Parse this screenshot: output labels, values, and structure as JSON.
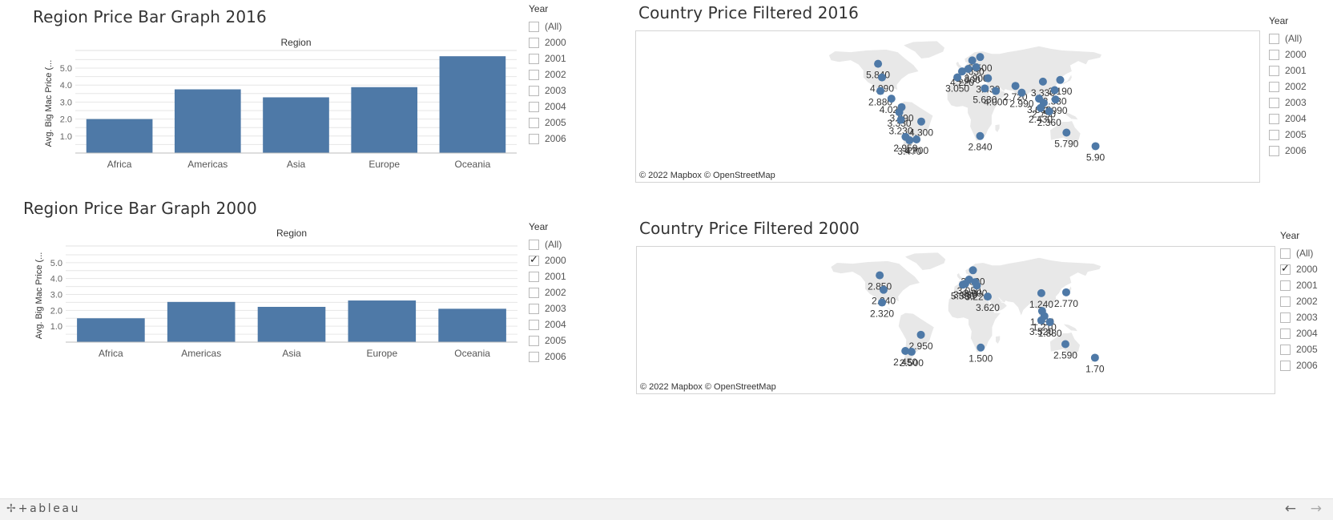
{
  "charts": {
    "bar2016": {
      "title": "Region Price Bar Graph 2016",
      "header": "Region",
      "ylabel": "Avg. Big Mac Price (...",
      "legend_title": "Year",
      "legend_items": [
        "(All)",
        "2000",
        "2001",
        "2002",
        "2003",
        "2004",
        "2005",
        "2006"
      ],
      "legend_checked": []
    },
    "bar2000": {
      "title": "Region Price Bar Graph 2000",
      "header": "Region",
      "ylabel": "Avg. Big Mac Price (...",
      "legend_title": "Year",
      "legend_items": [
        "(All)",
        "2000",
        "2001",
        "2002",
        "2003",
        "2004",
        "2005",
        "2006"
      ],
      "legend_checked": [
        "2000"
      ]
    },
    "map2016": {
      "title": "Country Price Filtered 2016",
      "attribution": "© 2022 Mapbox  © OpenStreetMap",
      "legend_title": "Year",
      "legend_items": [
        "(All)",
        "2000",
        "2001",
        "2002",
        "2003",
        "2004",
        "2005",
        "2006"
      ],
      "legend_checked": []
    },
    "map2000": {
      "title": "Country Price Filtered 2000",
      "attribution": "© 2022 Mapbox  © OpenStreetMap",
      "legend_title": "Year",
      "legend_items": [
        "(All)",
        "2000",
        "2001",
        "2002",
        "2003",
        "2004",
        "2005",
        "2006"
      ],
      "legend_checked": [
        "2000"
      ]
    }
  },
  "footer": {
    "brand": "+ableau",
    "logo_icon": "tableau-logo-icon",
    "back_icon": "arrow-left-icon",
    "forward_icon": "arrow-right-icon"
  },
  "colors": {
    "bar": "#4e79a7",
    "mark": "#4e79a7",
    "land": "#e8e8e8",
    "grid": "#e6e6e6"
  },
  "chart_data": [
    {
      "type": "bar",
      "title": "Region Price Bar Graph 2016",
      "xlabel": "Region",
      "ylabel": "Avg. Big Mac Price (...",
      "categories": [
        "Africa",
        "Americas",
        "Asia",
        "Europe",
        "Oceania"
      ],
      "values": [
        2.0,
        3.75,
        3.28,
        3.88,
        5.7
      ],
      "yticks": [
        1.0,
        2.0,
        3.0,
        4.0,
        5.0
      ],
      "ylim": [
        0,
        5.85
      ],
      "grid": true
    },
    {
      "type": "bar",
      "title": "Region Price Bar Graph 2000",
      "xlabel": "Region",
      "ylabel": "Avg. Big Mac Price (...",
      "categories": [
        "Africa",
        "Americas",
        "Asia",
        "Europe",
        "Oceania"
      ],
      "values": [
        1.5,
        2.53,
        2.22,
        2.62,
        2.1
      ],
      "yticks": [
        1.0,
        2.0,
        3.0,
        4.0,
        5.0
      ],
      "ylim": [
        0,
        5.85
      ],
      "grid": true
    },
    {
      "type": "scatter",
      "title": "Country Price Filtered 2016",
      "points": [
        {
          "lon": -105,
          "lat": 56,
          "label": "5.840"
        },
        {
          "lon": -100,
          "lat": 40,
          "label": "4.990"
        },
        {
          "lon": -102,
          "lat": 24,
          "label": "2.880"
        },
        {
          "lon": -88,
          "lat": 15,
          "label": "4.020"
        },
        {
          "lon": -75,
          "lat": 5,
          "label": "3.890"
        },
        {
          "lon": -78,
          "lat": -1,
          "label": "3.330"
        },
        {
          "lon": -76,
          "lat": -10,
          "label": "3.230"
        },
        {
          "lon": -70,
          "lat": -30,
          "label": "2.950"
        },
        {
          "lon": -65,
          "lat": -34,
          "label": "3.470"
        },
        {
          "lon": -56,
          "lat": -33,
          "label": "4.700"
        },
        {
          "lon": -50,
          "lat": -12,
          "label": "4.300"
        },
        {
          "lon": -4,
          "lat": 40,
          "label": "3.050"
        },
        {
          "lon": 10,
          "lat": 50,
          "label": "4.000"
        },
        {
          "lon": 2,
          "lat": 47,
          "label": "4.220"
        },
        {
          "lon": 15,
          "lat": 60,
          "label": "5.630"
        },
        {
          "lon": 25,
          "lat": 64,
          "label": "5.500"
        },
        {
          "lon": 20,
          "lat": 52,
          "label": "3.900"
        },
        {
          "lon": 35,
          "lat": 39,
          "label": "3.430"
        },
        {
          "lon": 31,
          "lat": 27,
          "label": "5.630"
        },
        {
          "lon": 45,
          "lat": 24,
          "label": "4.000"
        },
        {
          "lon": 25,
          "lat": -29,
          "label": "2.840"
        },
        {
          "lon": 78,
          "lat": 22,
          "label": "2.990"
        },
        {
          "lon": 70,
          "lat": 30,
          "label": "2.720"
        },
        {
          "lon": 105,
          "lat": 35,
          "label": "3.330"
        },
        {
          "lon": 127,
          "lat": 37,
          "label": "3.190"
        },
        {
          "lon": 100,
          "lat": 15,
          "label": "3.630"
        },
        {
          "lon": 102,
          "lat": 4,
          "label": "2.430"
        },
        {
          "lon": 106,
          "lat": 10,
          "label": "2.790"
        },
        {
          "lon": 121,
          "lat": 14,
          "label": "2.990"
        },
        {
          "lon": 113,
          "lat": 0,
          "label": "2.360"
        },
        {
          "lon": 120,
          "lat": 25,
          "label": "2.330"
        },
        {
          "lon": 135,
          "lat": -25,
          "label": "5.790"
        },
        {
          "lon": 172,
          "lat": -41,
          "label": "5.90"
        }
      ]
    },
    {
      "type": "scatter",
      "title": "Country Price Filtered 2000",
      "points": [
        {
          "lon": -105,
          "lat": 56,
          "label": "2.850"
        },
        {
          "lon": -100,
          "lat": 39,
          "label": "2.240"
        },
        {
          "lon": -102,
          "lat": 24,
          "label": "2.320"
        },
        {
          "lon": -72,
          "lat": -33,
          "label": "2.450"
        },
        {
          "lon": -64,
          "lat": -34,
          "label": "2.500"
        },
        {
          "lon": -52,
          "lat": -14,
          "label": "2.950"
        },
        {
          "lon": 15,
          "lat": 62,
          "label": "3.000"
        },
        {
          "lon": 10,
          "lat": 51,
          "label": "3.050"
        },
        {
          "lon": 18,
          "lat": 48,
          "label": "3.000"
        },
        {
          "lon": 5,
          "lat": 46,
          "label": "3.830"
        },
        {
          "lon": 20,
          "lat": 44,
          "label": "3.220"
        },
        {
          "lon": 2,
          "lat": 45,
          "label": "5.530"
        },
        {
          "lon": 34,
          "lat": 31,
          "label": "3.620"
        },
        {
          "lon": 25,
          "lat": -29,
          "label": "1.500"
        },
        {
          "lon": 103,
          "lat": 35,
          "label": "1.240"
        },
        {
          "lon": 135,
          "lat": 36,
          "label": "2.770"
        },
        {
          "lon": 104,
          "lat": 14,
          "label": "1.450"
        },
        {
          "lon": 103,
          "lat": 3,
          "label": "3.520"
        },
        {
          "lon": 114,
          "lat": 1,
          "label": "1.880"
        },
        {
          "lon": 107,
          "lat": 8,
          "label": "1.210"
        },
        {
          "lon": 134,
          "lat": -25,
          "label": "2.590"
        },
        {
          "lon": 172,
          "lat": -41,
          "label": "1.70"
        }
      ]
    }
  ]
}
